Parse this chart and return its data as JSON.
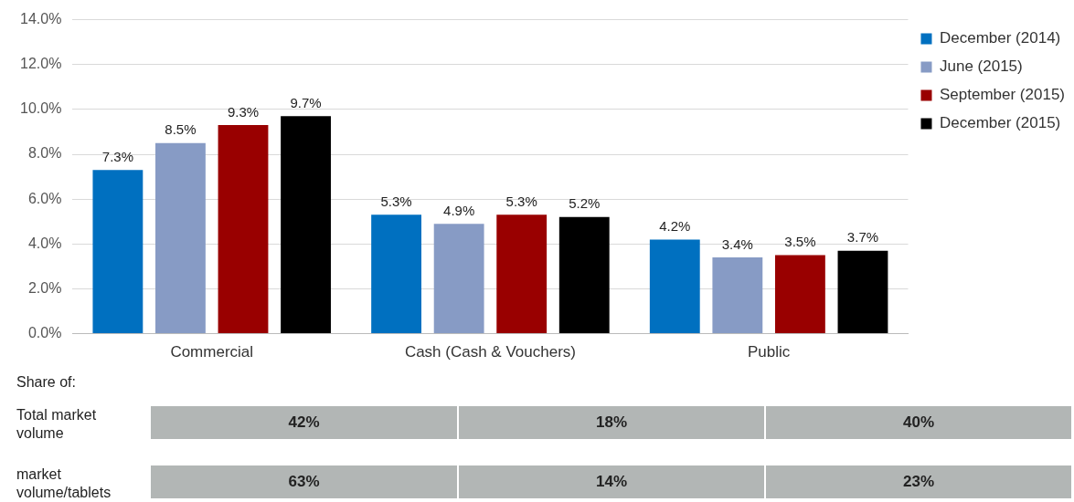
{
  "chart_data": {
    "type": "bar",
    "categories": [
      "Commercial",
      "Cash (Cash & Vouchers)",
      "Public"
    ],
    "series": [
      {
        "name": "December (2014)",
        "color": "#0070c0",
        "values": [
          7.3,
          5.3,
          4.2
        ],
        "value_labels": [
          "7.3%",
          "5.3%",
          "4.2%"
        ]
      },
      {
        "name": "June (2015)",
        "color": "#879bc5",
        "values": [
          8.5,
          4.9,
          3.4
        ],
        "value_labels": [
          "8.5%",
          "4.9%",
          "3.4%"
        ]
      },
      {
        "name": "September (2015)",
        "color": "#990000",
        "values": [
          9.3,
          5.3,
          3.5
        ],
        "value_labels": [
          "9.3%",
          "5.3%",
          "3.5%"
        ]
      },
      {
        "name": "December (2015)",
        "color": "#000000",
        "values": [
          9.7,
          5.2,
          3.7
        ],
        "value_labels": [
          "9.7%",
          "5.2%",
          "3.7%"
        ]
      }
    ],
    "ylim": [
      0,
      14
    ],
    "yticks": [
      {
        "value": 0,
        "label": "0.0%"
      },
      {
        "value": 2,
        "label": "2.0%"
      },
      {
        "value": 4,
        "label": "4.0%"
      },
      {
        "value": 6,
        "label": "6.0%"
      },
      {
        "value": 8,
        "label": "8.0%"
      },
      {
        "value": 10,
        "label": "10.0%"
      },
      {
        "value": 12,
        "label": "12.0%"
      },
      {
        "value": 14,
        "label": "14.0%"
      }
    ],
    "grid": "y",
    "legend": "top right",
    "annotations": [
      "Share of:",
      "Total market volume",
      "42%",
      "18%",
      "40%",
      "market volume/tablets",
      "63%",
      "14%",
      "23%"
    ]
  }
}
